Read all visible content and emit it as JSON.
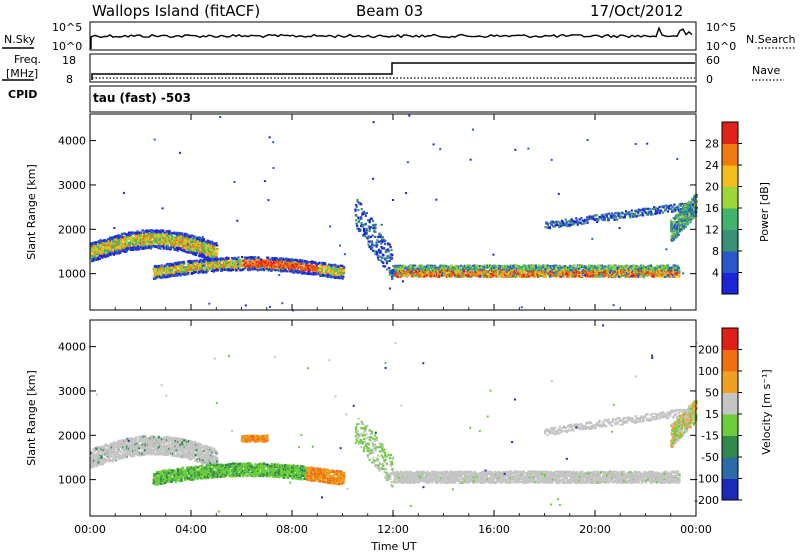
{
  "header": {
    "station": "Wallops Island (fitACF)",
    "beam": "Beam 03",
    "date": "17/Oct/2012"
  },
  "noise_panel": {
    "left_label": "N.Sky",
    "right_label": "N.Search",
    "left_ticks": [
      "10^5",
      "10^0"
    ],
    "right_ticks": [
      "10^5",
      "10^0"
    ]
  },
  "freq_panel": {
    "left_label_1": "Freq.",
    "left_label_2": "[MHz]",
    "left_label_3": "CPID",
    "right_label": "Nave",
    "left_ticks": [
      "18",
      "8"
    ],
    "right_ticks": [
      "60",
      "0"
    ],
    "mode": "tau (fast) -503"
  },
  "chart_data": [
    {
      "type": "heatmap",
      "panel": "power",
      "ylabel": "Slant Range [km]",
      "ylim": [
        180,
        4600
      ],
      "yticks": [
        "1000",
        "2000",
        "3000",
        "4000"
      ],
      "colorbar_label": "Power [dB]",
      "colorbar_ticks": [
        "4",
        "8",
        "12",
        "16",
        "20",
        "24",
        "28"
      ],
      "colors": [
        "#1c24d8",
        "#2a58c8",
        "#3a8f78",
        "#3fb36a",
        "#9ed63a",
        "#f3bd1e",
        "#f07a10",
        "#e0231a"
      ]
    },
    {
      "type": "heatmap",
      "panel": "velocity",
      "ylabel": "Slant Range [km]",
      "ylim": [
        180,
        4600
      ],
      "yticks": [
        "1000",
        "2000",
        "3000",
        "4000"
      ],
      "colorbar_label": "Velocity [m s⁻¹]",
      "colorbar_ticks": [
        "200",
        "100",
        "50",
        "15",
        "-15",
        "-50",
        "-100",
        "-200"
      ],
      "colors": [
        "#1c2ab8",
        "#2c6aa8",
        "#2f8a4a",
        "#6ccc3a",
        "#c4c4c4",
        "#f0a020",
        "#f07010",
        "#e02018"
      ],
      "xlabel": "Time UT",
      "xticks": [
        "00:00",
        "04:00",
        "08:00",
        "12:00",
        "16:00",
        "20:00",
        "00:00"
      ]
    }
  ]
}
